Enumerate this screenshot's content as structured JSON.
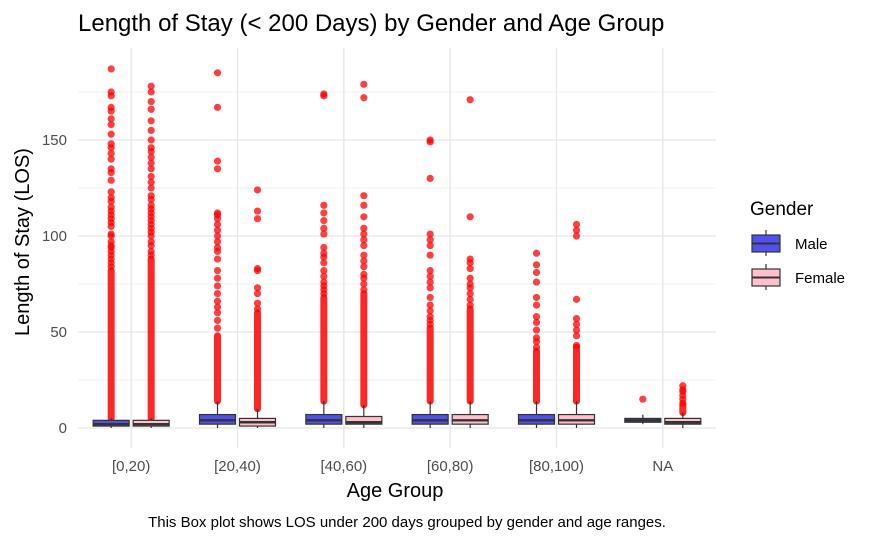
{
  "chart_data": {
    "type": "box",
    "title": "Length of Stay (< 200 Days) by Gender and Age Group",
    "xlabel": "Age Group",
    "ylabel": "Length of Stay (LOS)",
    "caption": "This Box plot shows LOS under 200 days grouped by gender and age ranges.",
    "categories": [
      "[0,20)",
      "[20,40)",
      "[40,60)",
      "[60,80)",
      "[80,100)",
      "NA"
    ],
    "yticks": [
      0,
      50,
      100,
      150
    ],
    "ylim": [
      -10,
      193
    ],
    "grid": true,
    "legend": {
      "title": "Gender",
      "placement": "right"
    },
    "outlier_color": "#ff0000",
    "series": [
      {
        "name": "Male",
        "color": "#5050ee",
        "boxes": [
          {
            "min": 0,
            "q1": 1,
            "median": 2,
            "q3": 4,
            "max": 5,
            "dense_from": 5,
            "dense_to": 82,
            "outliers": [
              84,
              86,
              88,
              90,
              92,
              94,
              95,
              97,
              100,
              101,
              105,
              107,
              109,
              111,
              113,
              115,
              118,
              120,
              123,
              129,
              133,
              135,
              140,
              143,
              146,
              148,
              153,
              158,
              161,
              165,
              167,
              173,
              175,
              187
            ]
          },
          {
            "min": 0,
            "q1": 2,
            "median": 4,
            "q3": 7,
            "max": 14,
            "dense_from": 14,
            "dense_to": 48,
            "outliers": [
              52,
              56,
              60,
              63,
              66,
              70,
              74,
              78,
              82,
              88,
              92,
              94,
              97,
              100,
              103,
              106,
              109,
              111,
              112,
              135,
              139,
              167,
              185
            ]
          },
          {
            "min": 0,
            "q1": 2,
            "median": 4,
            "q3": 7,
            "max": 14,
            "dense_from": 14,
            "dense_to": 68,
            "outliers": [
              70,
              72,
              74,
              76,
              79,
              82,
              86,
              89,
              91,
              94,
              101,
              104,
              108,
              112,
              116,
              173,
              174
            ]
          },
          {
            "min": 0,
            "q1": 2,
            "median": 4,
            "q3": 7,
            "max": 14,
            "dense_from": 14,
            "dense_to": 52,
            "outliers": [
              54,
              56,
              58,
              61,
              64,
              68,
              73,
              76,
              79,
              82,
              90,
              95,
              98,
              101,
              130,
              149,
              150
            ]
          },
          {
            "min": 0,
            "q1": 2,
            "median": 4,
            "q3": 7,
            "max": 14,
            "dense_from": 14,
            "dense_to": 40,
            "outliers": [
              42,
              45,
              47,
              51,
              55,
              58,
              64,
              68,
              76,
              81,
              85,
              91
            ]
          },
          {
            "min": 2,
            "q1": 3,
            "median": 4,
            "q3": 5,
            "max": 7,
            "dense_from": 7,
            "dense_to": 7,
            "outliers": [
              15
            ]
          }
        ]
      },
      {
        "name": "Female",
        "color": "#ffc0cb",
        "boxes": [
          {
            "min": 0,
            "q1": 1,
            "median": 2,
            "q3": 4,
            "max": 5,
            "dense_from": 5,
            "dense_to": 88,
            "outliers": [
              90,
              92,
              95,
              97,
              100,
              102,
              104,
              106,
              108,
              110,
              112,
              114,
              116,
              119,
              121,
              125,
              128,
              131,
              135,
              138,
              141,
              144,
              146,
              150,
              155,
              160,
              166,
              170,
              175,
              178
            ]
          },
          {
            "min": 0,
            "q1": 1,
            "median": 3,
            "q3": 5,
            "max": 10,
            "dense_from": 10,
            "dense_to": 60,
            "outliers": [
              62,
              65,
              70,
              73,
              82,
              83,
              109,
              113,
              124
            ]
          },
          {
            "min": 0,
            "q1": 2,
            "median": 3,
            "q3": 6,
            "max": 12,
            "dense_from": 12,
            "dense_to": 70,
            "outliers": [
              72,
              75,
              78,
              80,
              84,
              87,
              90,
              95,
              98,
              101,
              104,
              110,
              116,
              121,
              172,
              179
            ]
          },
          {
            "min": 0,
            "q1": 2,
            "median": 4,
            "q3": 7,
            "max": 14,
            "dense_from": 14,
            "dense_to": 62,
            "outliers": [
              64,
              67,
              70,
              73,
              75,
              78,
              83,
              86,
              88,
              110,
              171
            ]
          },
          {
            "min": 0,
            "q1": 2,
            "median": 4,
            "q3": 7,
            "max": 14,
            "dense_from": 14,
            "dense_to": 42,
            "outliers": [
              43,
              48,
              51,
              54,
              57,
              67,
              100,
              103,
              106
            ]
          },
          {
            "min": 0,
            "q1": 2,
            "median": 3,
            "q3": 5,
            "max": 8,
            "dense_from": 8,
            "dense_to": 12,
            "outliers": [
              13,
              15,
              17,
              19,
              20,
              22
            ]
          }
        ]
      }
    ]
  }
}
